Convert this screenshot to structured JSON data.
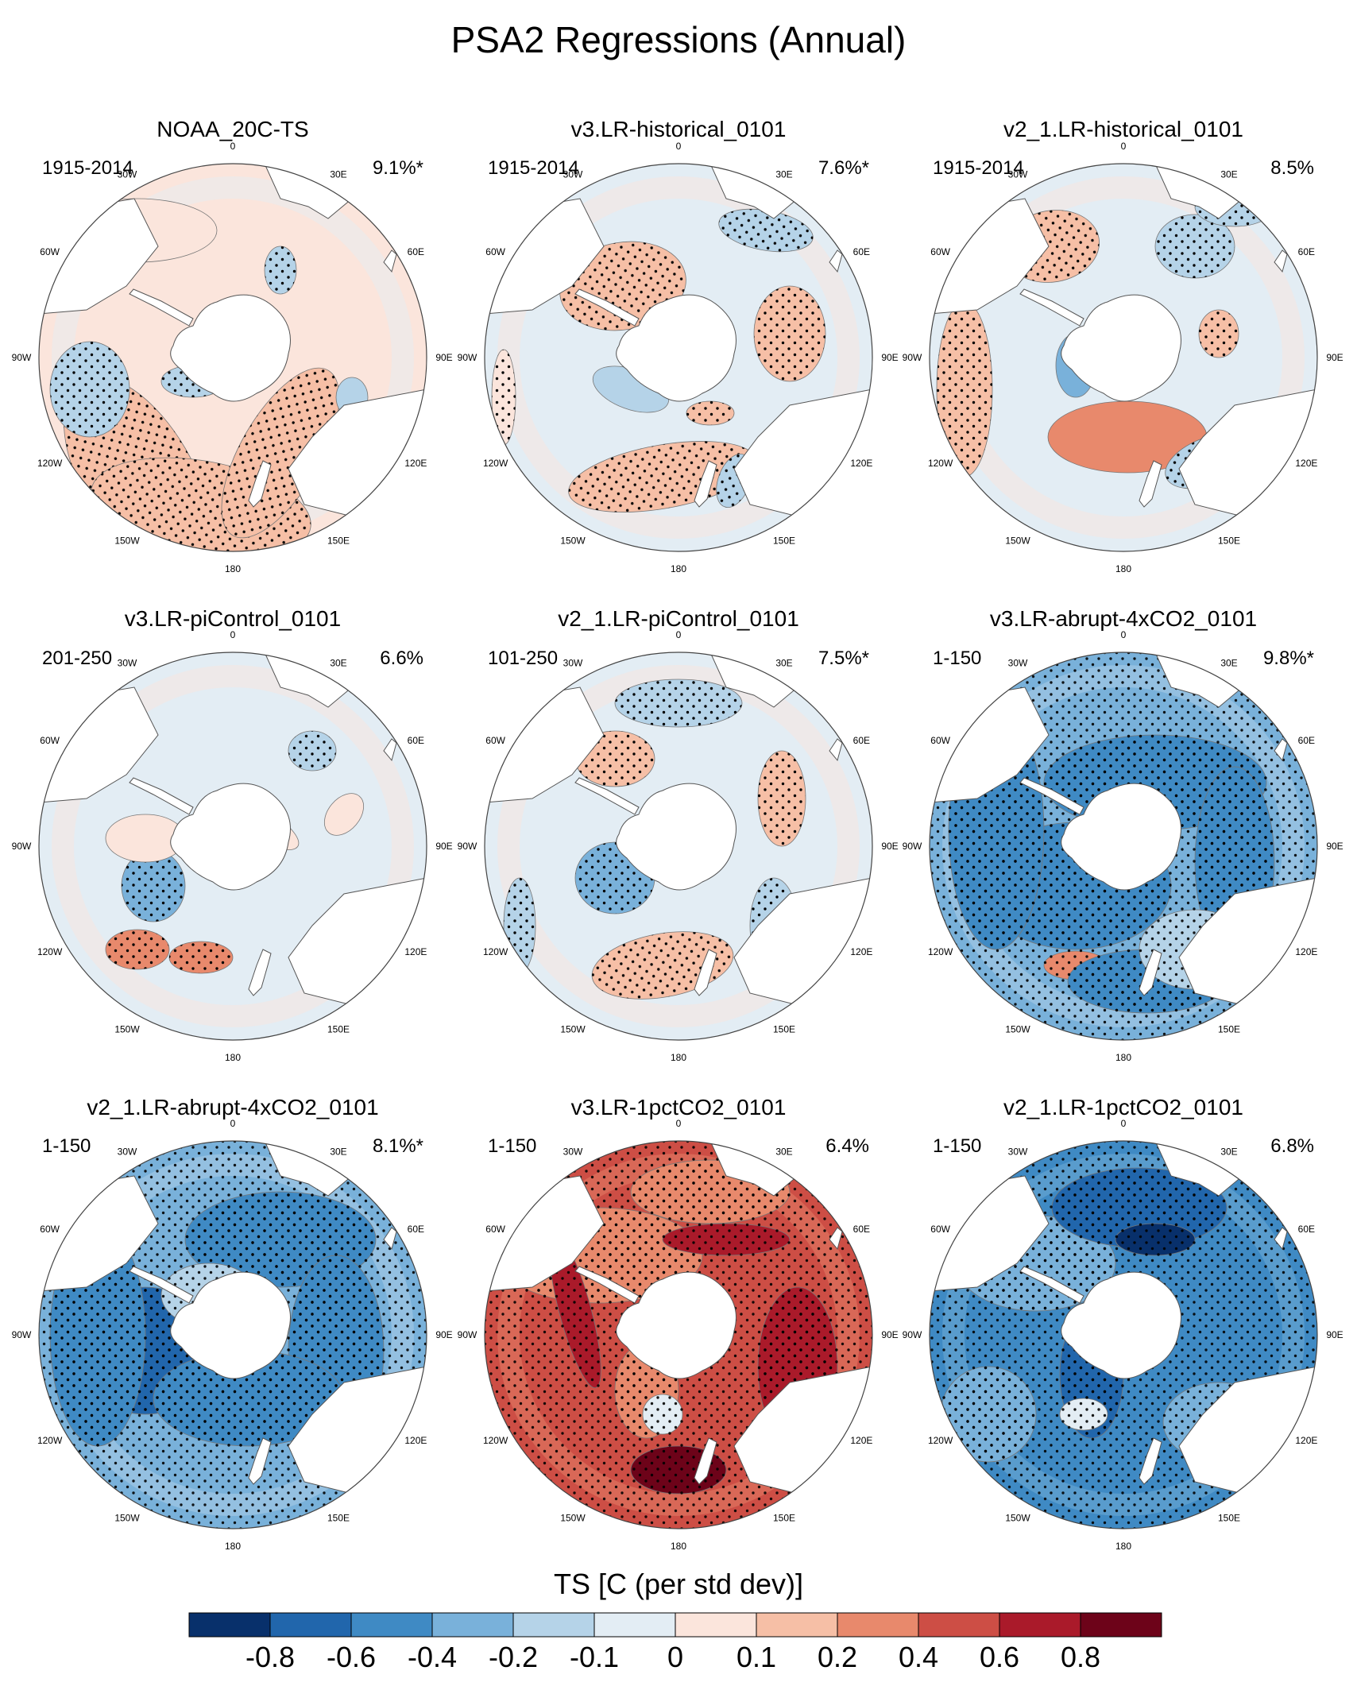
{
  "figure": {
    "title": "PSA2 Regressions (Annual)",
    "lon_labels": [
      "0",
      "30E",
      "60E",
      "90E",
      "120E",
      "150E",
      "180",
      "150W",
      "120W",
      "90W",
      "60W",
      "30W"
    ]
  },
  "panels": [
    {
      "title": "NOAA_20C-TS",
      "years": "1915-2014",
      "pct": "9.1%*",
      "pattern": "obs"
    },
    {
      "title": "v3.LR-historical_0101",
      "years": "1915-2014",
      "pct": "7.6%*",
      "pattern": "hist3"
    },
    {
      "title": "v2_1.LR-historical_0101",
      "years": "1915-2014",
      "pct": "8.5%",
      "pattern": "hist2"
    },
    {
      "title": "v3.LR-piControl_0101",
      "years": "201-250",
      "pct": "6.6%",
      "pattern": "pic3"
    },
    {
      "title": "v2_1.LR-piControl_0101",
      "years": "101-250",
      "pct": "7.5%*",
      "pattern": "pic2"
    },
    {
      "title": "v3.LR-abrupt-4xCO2_0101",
      "years": "1-150",
      "pct": "9.8%*",
      "pattern": "abr3"
    },
    {
      "title": "v2_1.LR-abrupt-4xCO2_0101",
      "years": "1-150",
      "pct": "8.1%*",
      "pattern": "abr2"
    },
    {
      "title": "v3.LR-1pctCO2_0101",
      "years": "1-150",
      "pct": "6.4%",
      "pattern": "pct3"
    },
    {
      "title": "v2_1.LR-1pctCO2_0101",
      "years": "1-150",
      "pct": "6.8%",
      "pattern": "pct2"
    }
  ],
  "colorbar": {
    "title": "TS [C (per std dev)]",
    "tick_labels": [
      "-0.8",
      "-0.6",
      "-0.4",
      "-0.2",
      "-0.1",
      "0",
      "0.1",
      "0.2",
      "0.4",
      "0.6",
      "0.8"
    ],
    "colors": [
      "#08306b",
      "#2166ac",
      "#3f8ac4",
      "#79b1da",
      "#b5d3e8",
      "#e3edf4",
      "#fbe5dc",
      "#f6bfa6",
      "#e8896c",
      "#cd4e45",
      "#aa1a2a",
      "#6d0319"
    ]
  },
  "land_color": "#ffffff"
}
